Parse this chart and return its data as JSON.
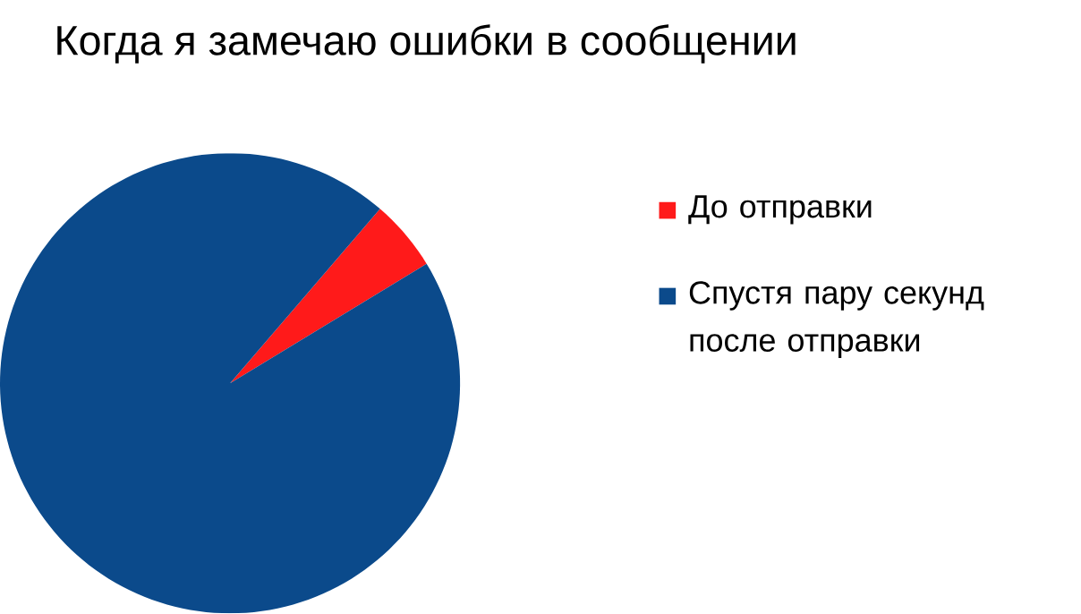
{
  "chart_data": {
    "type": "pie",
    "title": "Когда я замечаю ошибки в сообщении",
    "categories": [
      "До отправки",
      "Спустя пару секунд после отправки"
    ],
    "values": [
      5,
      95
    ],
    "colors": [
      "#ff1a1a",
      "#0b4a8b"
    ],
    "legend": "right"
  }
}
